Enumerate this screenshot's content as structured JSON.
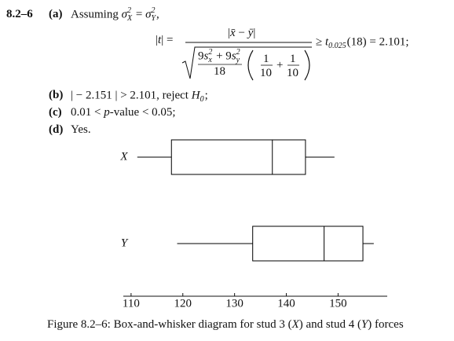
{
  "problem": {
    "number": "8.2–6",
    "part_a": {
      "label": "(a)",
      "segments": [
        {
          "t": "Assuming "
        },
        {
          "i": "σ"
        },
        {
          "sup": "2",
          "sub": "X"
        },
        {
          "t": " = "
        },
        {
          "i": "σ"
        },
        {
          "sup": "2",
          "sub": "Y"
        },
        {
          "t": ","
        }
      ]
    },
    "formula": {
      "lhs": [
        {
          "t": "|"
        },
        {
          "i": "t"
        },
        {
          "t": "| ="
        }
      ],
      "numerator": [
        {
          "t": "|"
        },
        {
          "i": "x̄"
        },
        {
          "t": " − "
        },
        {
          "i": "ȳ"
        },
        {
          "t": "|"
        }
      ],
      "inner_numerator": [
        {
          "t": "9"
        },
        {
          "i": "s"
        },
        {
          "sup": "2",
          "sub": "x"
        },
        {
          "t": " + 9"
        },
        {
          "i": "s"
        },
        {
          "sup": "2",
          "sub": "y"
        }
      ],
      "inner_denominator": "18",
      "term1": {
        "num": "1",
        "den": "10"
      },
      "plus": "+",
      "term2": {
        "num": "1",
        "den": "10"
      },
      "rhs": [
        {
          "t": "≥ "
        },
        {
          "i": "t"
        },
        {
          "sub": "0.025"
        },
        {
          "t": "(18) = 2.101;"
        }
      ]
    },
    "part_b": {
      "label": "(b)",
      "segments": [
        {
          "t": "| − 2.151 | > 2.101, reject "
        },
        {
          "i": "H"
        },
        {
          "sub": "0"
        },
        {
          "t": ";"
        }
      ]
    },
    "part_c": {
      "label": "(c)",
      "segments": [
        {
          "t": "0.01 < "
        },
        {
          "i": "p"
        },
        {
          "t": "-value < 0.05;"
        }
      ]
    },
    "part_d": {
      "label": "(d)",
      "segments": [
        {
          "t": "Yes."
        }
      ]
    }
  },
  "chart_data": {
    "type": "box",
    "series": [
      {
        "name": "X",
        "values": [
          111.2,
          117.8,
          137.3,
          143.7,
          149.3
        ]
      },
      {
        "name": "Y",
        "values": [
          118.9,
          133.5,
          147.3,
          154.8,
          156.9
        ]
      }
    ],
    "xlim": [
      108.5,
      159.5
    ],
    "xticks": [
      110,
      120,
      130,
      140,
      150
    ],
    "color": "#000000"
  },
  "caption": [
    {
      "t": "Figure 8.2–6: Box-and-whisker diagram for stud 3 ("
    },
    {
      "i": "X"
    },
    {
      "t": ") and stud 4 ("
    },
    {
      "i": "Y"
    },
    {
      "t": ") forces"
    }
  ]
}
